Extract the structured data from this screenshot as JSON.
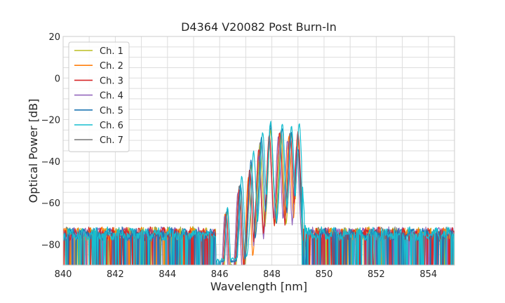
{
  "chart_data": {
    "type": "line",
    "title": "D4364 V20082 Post Burn-In",
    "xlabel": "Wavelength [nm]",
    "ylabel": "Optical Power [dB]",
    "xlim": [
      840,
      855
    ],
    "ylim": [
      -90,
      20
    ],
    "x_ticks": [
      840,
      842,
      844,
      846,
      848,
      850,
      852,
      854
    ],
    "y_ticks": [
      20,
      0,
      -20,
      -40,
      -60,
      -80
    ],
    "grid": true,
    "legend_position": "top-left",
    "noise_floor_db": -75,
    "passband_nm": [
      846.0,
      849.2
    ],
    "series": [
      {
        "name": "Ch. 1",
        "color": "#bcbd22",
        "peaks": [
          [
            846.3,
            -64
          ],
          [
            846.8,
            -52
          ],
          [
            847.2,
            -42
          ],
          [
            847.55,
            -32
          ],
          [
            847.95,
            -25
          ],
          [
            848.35,
            -27
          ],
          [
            848.75,
            -27
          ],
          [
            849.0,
            -36
          ]
        ]
      },
      {
        "name": "Ch. 2",
        "color": "#ff7f0e",
        "peaks": [
          [
            846.2,
            -66
          ],
          [
            846.7,
            -56
          ],
          [
            847.1,
            -48
          ],
          [
            847.5,
            -38
          ],
          [
            847.9,
            -29
          ],
          [
            848.3,
            -27
          ],
          [
            848.65,
            -28
          ],
          [
            849.0,
            -30
          ]
        ]
      },
      {
        "name": "Ch. 3",
        "color": "#d62728",
        "peaks": [
          [
            846.25,
            -65
          ],
          [
            846.75,
            -54
          ],
          [
            847.15,
            -44
          ],
          [
            847.5,
            -34
          ],
          [
            847.9,
            -27
          ],
          [
            848.3,
            -26
          ],
          [
            848.7,
            -27
          ],
          [
            849.0,
            -26
          ]
        ]
      },
      {
        "name": "Ch. 4",
        "color": "#9467bd",
        "peaks": [
          [
            846.2,
            -66
          ],
          [
            846.7,
            -55
          ],
          [
            847.15,
            -46
          ],
          [
            847.5,
            -37
          ],
          [
            847.9,
            -30
          ],
          [
            848.25,
            -28
          ],
          [
            848.6,
            -30
          ],
          [
            848.95,
            -33
          ]
        ]
      },
      {
        "name": "Ch. 5",
        "color": "#1f77b4",
        "peaks": [
          [
            846.3,
            -63
          ],
          [
            846.8,
            -51
          ],
          [
            847.2,
            -40
          ],
          [
            847.6,
            -29
          ],
          [
            847.95,
            -22
          ],
          [
            848.4,
            -24
          ],
          [
            848.75,
            -26
          ],
          [
            849.0,
            -34
          ]
        ]
      },
      {
        "name": "Ch. 6",
        "color": "#17becf",
        "peaks": [
          [
            846.3,
            -62
          ],
          [
            846.85,
            -47
          ],
          [
            847.3,
            -35
          ],
          [
            847.65,
            -26
          ],
          [
            847.95,
            -21
          ],
          [
            848.4,
            -22
          ],
          [
            848.75,
            -23
          ],
          [
            849.05,
            -22
          ]
        ]
      },
      {
        "name": "Ch. 7",
        "color": "#7f7f7f",
        "peaks": [
          [
            846.25,
            -64
          ],
          [
            846.75,
            -52
          ],
          [
            847.2,
            -42
          ],
          [
            847.55,
            -31
          ],
          [
            847.95,
            -24
          ],
          [
            848.35,
            -25
          ],
          [
            848.7,
            -26
          ],
          [
            849.0,
            -28
          ]
        ]
      }
    ]
  }
}
